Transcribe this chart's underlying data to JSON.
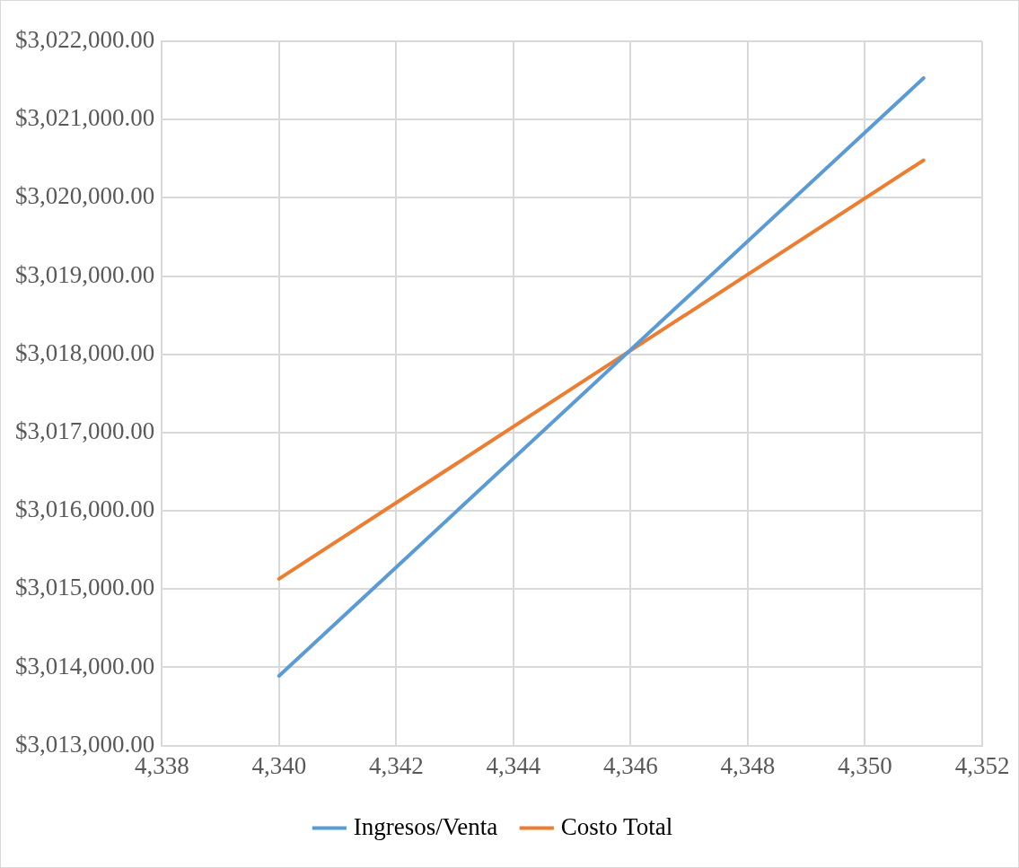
{
  "chart_data": {
    "type": "line",
    "x": [
      4340,
      4351
    ],
    "series": [
      {
        "name": "Ingresos/Venta",
        "color": "#5b9bd5",
        "values": [
          3013890,
          3021530
        ]
      },
      {
        "name": "Costo Total",
        "color": "#ed7d31",
        "values": [
          3015130,
          3020480
        ]
      }
    ],
    "xlim": [
      4338,
      4352
    ],
    "xticks": [
      {
        "value": 4338,
        "label": "4,338"
      },
      {
        "value": 4340,
        "label": "4,340"
      },
      {
        "value": 4342,
        "label": "4,342"
      },
      {
        "value": 4344,
        "label": "4,344"
      },
      {
        "value": 4346,
        "label": "4,346"
      },
      {
        "value": 4348,
        "label": "4,348"
      },
      {
        "value": 4350,
        "label": "4,350"
      },
      {
        "value": 4352,
        "label": "4,352"
      }
    ],
    "ylim": [
      3013000,
      3022000
    ],
    "yticks": [
      {
        "value": 3013000,
        "label": "$3,013,000.00"
      },
      {
        "value": 3014000,
        "label": "$3,014,000.00"
      },
      {
        "value": 3015000,
        "label": "$3,015,000.00"
      },
      {
        "value": 3016000,
        "label": "$3,016,000.00"
      },
      {
        "value": 3017000,
        "label": "$3,017,000.00"
      },
      {
        "value": 3018000,
        "label": "$3,018,000.00"
      },
      {
        "value": 3019000,
        "label": "$3,019,000.00"
      },
      {
        "value": 3020000,
        "label": "$3,020,000.00"
      },
      {
        "value": 3021000,
        "label": "$3,021,000.00"
      },
      {
        "value": 3022000,
        "label": "$3,022,000.00"
      }
    ],
    "grid": true,
    "legend": "bottom",
    "marker": "none",
    "line_style": "solid"
  }
}
